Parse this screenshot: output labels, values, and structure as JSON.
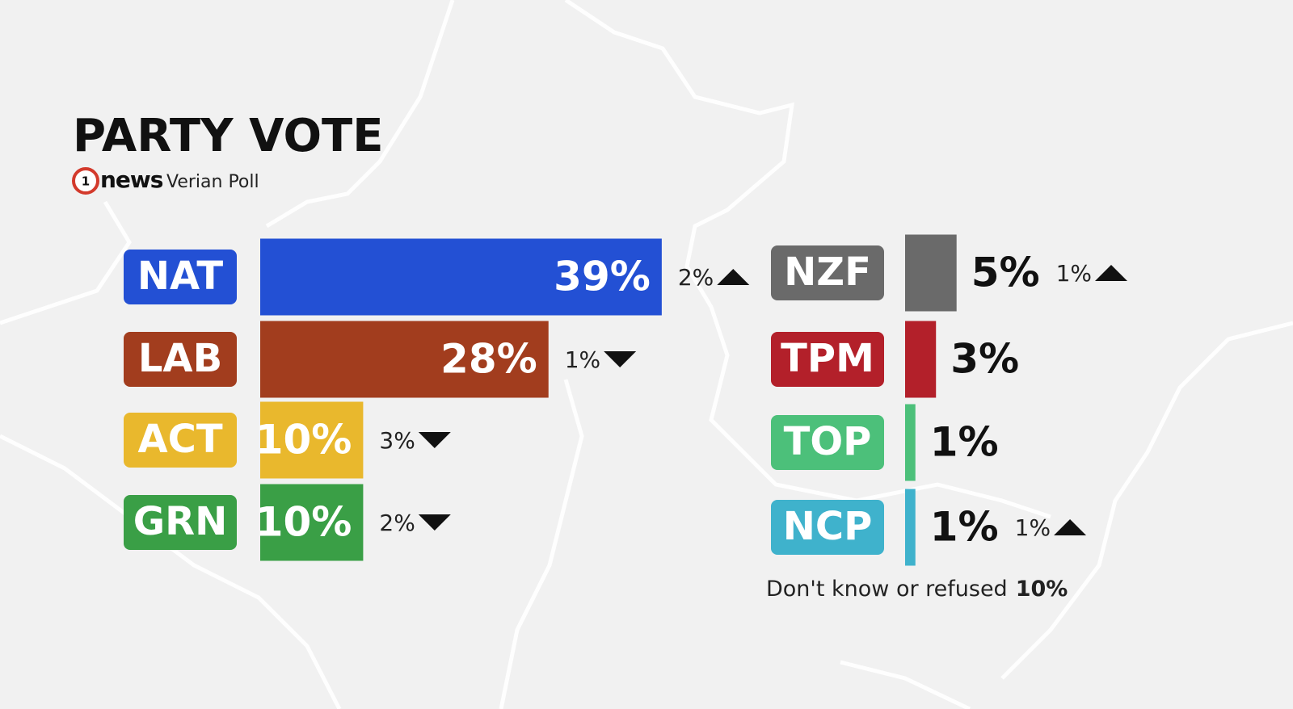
{
  "chart_data": {
    "type": "bar",
    "title": "PARTY VOTE",
    "logo_number": "1",
    "logo_text": "news",
    "subtitle": "Verian Poll",
    "categories": [
      "NAT",
      "LAB",
      "ACT",
      "GRN",
      "NZF",
      "TPM",
      "TOP",
      "NCP"
    ],
    "values": [
      39,
      28,
      10,
      10,
      5,
      3,
      1,
      1
    ],
    "value_labels": [
      "39%",
      "28%",
      "10%",
      "10%",
      "5%",
      "3%",
      "1%",
      "1%"
    ],
    "colors": [
      "#2350d4",
      "#a23d1e",
      "#e9b82d",
      "#3a9f46",
      "#6a6a6a",
      "#b3202a",
      "#4cc07a",
      "#3fb2cc"
    ],
    "changes": [
      2,
      1,
      3,
      2,
      1,
      null,
      null,
      1
    ],
    "change_labels": [
      "2%",
      "1%",
      "3%",
      "2%",
      "1%",
      null,
      null,
      "1%"
    ],
    "change_directions": [
      "up",
      "down",
      "down",
      "down",
      "up",
      null,
      null,
      "up"
    ],
    "note": {
      "label": "Don't know or refused",
      "value": 10,
      "value_label": "10%"
    }
  }
}
